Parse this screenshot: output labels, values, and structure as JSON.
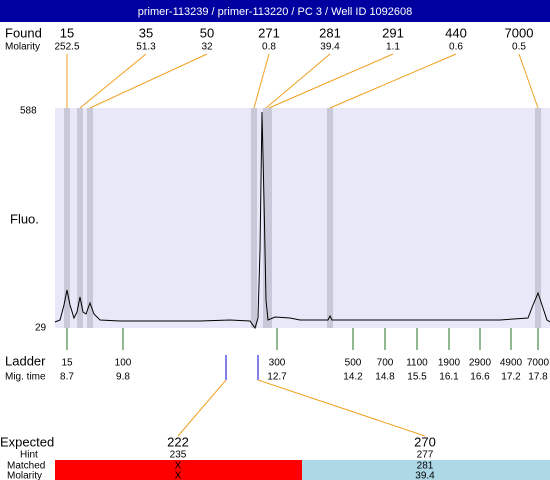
{
  "header": {
    "title": "primer-113239 / primer-113220 / PC 3 / Well ID 1092608"
  },
  "found": {
    "label": "Found",
    "molarity_label": "Molarity",
    "sizes": [
      15,
      35,
      50,
      271,
      281,
      291,
      440,
      7000
    ],
    "molarity": [
      252.5,
      51.3,
      32,
      0.8,
      39.4,
      1.1,
      0.6,
      0.5
    ]
  },
  "plot": {
    "y_label": "Fluo.",
    "y_max": 588,
    "y_min": 29
  },
  "ladder": {
    "label": "Ladder",
    "time_label": "Mig. time",
    "sizes": [
      15,
      100,
      300,
      500,
      700,
      1100,
      1900,
      2900,
      4900,
      7000
    ],
    "times": [
      8.7,
      9.8,
      12.7,
      14.2,
      14.8,
      15.5,
      16.1,
      16.6,
      17.2,
      17.8
    ]
  },
  "expected": {
    "label": "Expected",
    "hint_label": "Hint",
    "matched_label": "Matched",
    "molarity_label": "Molarity",
    "columns": [
      {
        "expected": 222,
        "hint": 235,
        "matched": "X",
        "molarity": "X"
      },
      {
        "expected": 270,
        "hint": 277,
        "matched": 281,
        "molarity": 39.4
      }
    ]
  }
}
